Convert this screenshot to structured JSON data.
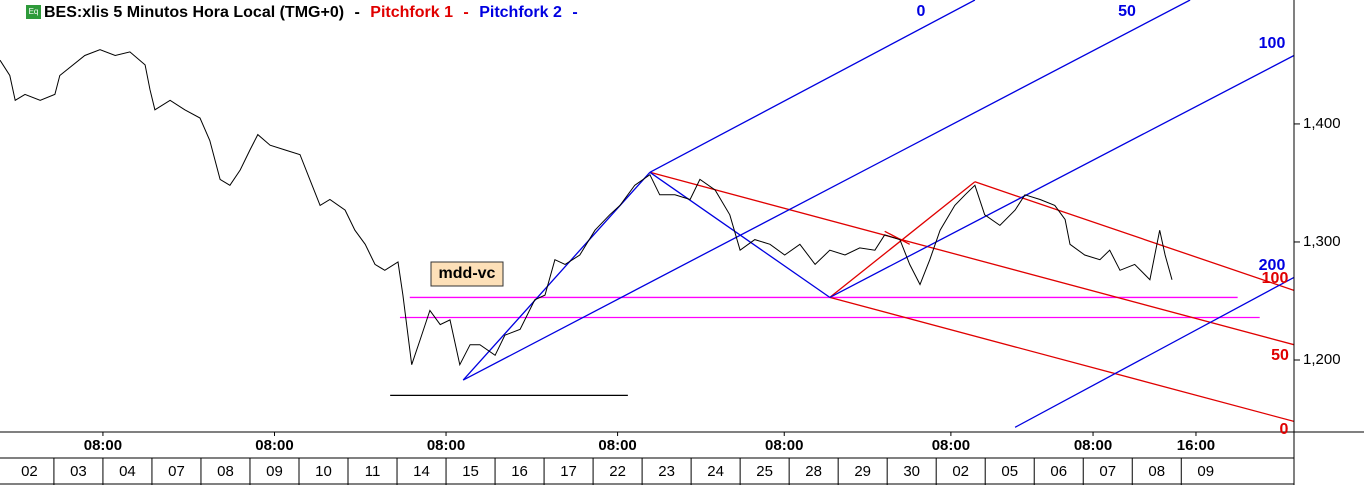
{
  "chart_data": {
    "type": "line",
    "title": "BES:xlis 5 Minutos Hora Local (TMG+0)",
    "symbol_icon": "Eq",
    "separator": "-",
    "xlim": [
      -0.1,
      26.3
    ],
    "ylim": [
      1139,
      1505
    ],
    "yticks": [
      {
        "value": 1200,
        "label": "1,200"
      },
      {
        "value": 1300,
        "label": "1,300"
      },
      {
        "value": 1400,
        "label": "1,400"
      }
    ],
    "xticks": [
      {
        "value": 2.0,
        "label": "08:00"
      },
      {
        "value": 5.5,
        "label": "08:00"
      },
      {
        "value": 9.0,
        "label": "08:00"
      },
      {
        "value": 12.5,
        "label": "08:00"
      },
      {
        "value": 15.9,
        "label": "08:00"
      },
      {
        "value": 19.3,
        "label": "08:00"
      },
      {
        "value": 22.2,
        "label": "08:00"
      },
      {
        "value": 24.3,
        "label": "16:00"
      }
    ],
    "xticks2": [
      {
        "value": 0.5,
        "label": "02"
      },
      {
        "value": 1.5,
        "label": "03"
      },
      {
        "value": 2.5,
        "label": "04"
      },
      {
        "value": 3.5,
        "label": "07"
      },
      {
        "value": 4.5,
        "label": "08"
      },
      {
        "value": 5.5,
        "label": "09"
      },
      {
        "value": 6.5,
        "label": "10"
      },
      {
        "value": 7.5,
        "label": "11"
      },
      {
        "value": 8.5,
        "label": "14"
      },
      {
        "value": 9.5,
        "label": "15"
      },
      {
        "value": 10.5,
        "label": "16"
      },
      {
        "value": 11.5,
        "label": "17"
      },
      {
        "value": 12.5,
        "label": "22"
      },
      {
        "value": 13.5,
        "label": "23"
      },
      {
        "value": 14.5,
        "label": "24"
      },
      {
        "value": 15.5,
        "label": "25"
      },
      {
        "value": 16.5,
        "label": "28"
      },
      {
        "value": 17.5,
        "label": "29"
      },
      {
        "value": 18.5,
        "label": "30"
      },
      {
        "value": 19.5,
        "label": "02"
      },
      {
        "value": 20.5,
        "label": "05"
      },
      {
        "value": 21.5,
        "label": "06"
      },
      {
        "value": 22.5,
        "label": "07"
      },
      {
        "value": 23.5,
        "label": "08"
      },
      {
        "value": 24.5,
        "label": "09"
      }
    ],
    "series": [
      {
        "color": "#000000",
        "x": [
          -0.1,
          0.1,
          0.21,
          0.41,
          0.72,
          1.02,
          1.12,
          1.63,
          1.94,
          2.25,
          2.55,
          2.86,
          2.96,
          3.06,
          3.37,
          3.67,
          3.98,
          4.18,
          4.39,
          4.59,
          4.8,
          5.0,
          5.16,
          5.41,
          5.71,
          6.02,
          6.22,
          6.43,
          6.63,
          6.94,
          7.14,
          7.35,
          7.55,
          7.75,
          8.02,
          8.12,
          8.3,
          8.47,
          8.67,
          8.88,
          9.08,
          9.28,
          9.49,
          9.69,
          10.0,
          10.2,
          10.51,
          10.81,
          11.02,
          11.22,
          11.43,
          11.73,
          12.04,
          12.34,
          12.55,
          12.85,
          13.16,
          13.36,
          13.67,
          13.98,
          14.18,
          14.49,
          14.79,
          15.0,
          15.3,
          15.61,
          15.91,
          16.22,
          16.53,
          16.83,
          17.14,
          17.44,
          17.75,
          17.95,
          18.26,
          18.46,
          18.67,
          18.87,
          19.08,
          19.38,
          19.59,
          19.79,
          19.99,
          20.3,
          20.61,
          20.81,
          21.12,
          21.42,
          21.63,
          21.73,
          22.03,
          22.34,
          22.54,
          22.75,
          23.05,
          23.36,
          23.56,
          23.67,
          23.81
        ],
        "values": [
          1454,
          1441,
          1420,
          1425,
          1420,
          1425,
          1441,
          1458,
          1463,
          1458,
          1461,
          1450,
          1429,
          1412,
          1420,
          1412,
          1405,
          1386,
          1353,
          1348,
          1361,
          1378,
          1391,
          1382,
          1378,
          1374,
          1353,
          1331,
          1336,
          1327,
          1310,
          1298,
          1281,
          1276,
          1283,
          1255,
          1196,
          1217,
          1242,
          1230,
          1234,
          1196,
          1213,
          1213,
          1204,
          1221,
          1226,
          1251,
          1255,
          1285,
          1281,
          1289,
          1310,
          1323,
          1331,
          1348,
          1357,
          1340,
          1340,
          1336,
          1353,
          1344,
          1323,
          1293,
          1302,
          1298,
          1289,
          1298,
          1281,
          1293,
          1289,
          1295,
          1293,
          1306,
          1302,
          1281,
          1264,
          1285,
          1310,
          1331,
          1340,
          1348,
          1323,
          1314,
          1327,
          1340,
          1336,
          1331,
          1319,
          1298,
          1289,
          1285,
          1293,
          1276,
          1281,
          1268,
          1310,
          1289,
          1268
        ]
      }
    ],
    "pitchforks": [
      {
        "name": "Pitchfork 1",
        "color": "#e00000",
        "levels": [
          100,
          50,
          0
        ],
        "lines": [
          {
            "x": [
              13.16,
              26.3
            ],
            "y": [
              1359,
              1213
            ]
          },
          {
            "x": [
              19.79,
              26.3
            ],
            "y": [
              1351,
              1259
            ]
          },
          {
            "x": [
              16.83,
              26.3
            ],
            "y": [
              1253,
              1148
            ]
          },
          {
            "x": [
              16.83,
              19.79
            ],
            "y": [
              1253,
              1351
            ]
          },
          {
            "x": [
              17.95,
              18.46
            ],
            "y": [
              1309,
              1298
            ]
          }
        ]
      },
      {
        "name": "Pitchfork 2",
        "color": "#0000e0",
        "levels": [
          0,
          50,
          100,
          200
        ],
        "lines": [
          {
            "x": [
              13.16,
              19.79
            ],
            "y": [
              1359,
              1505
            ]
          },
          {
            "x": [
              13.16,
              16.83
            ],
            "y": [
              1359,
              1253
            ]
          },
          {
            "x": [
              9.35,
              24.18
            ],
            "y": [
              1183,
              1505
            ]
          },
          {
            "x": [
              16.83,
              26.3
            ],
            "y": [
              1253,
              1458
            ]
          },
          {
            "x": [
              20.61,
              26.3
            ],
            "y": [
              1143,
              1270
            ]
          },
          {
            "x": [
              9.35,
              13.16
            ],
            "y": [
              1183,
              1359
            ]
          }
        ]
      }
    ],
    "hlines": [
      {
        "y": 1253,
        "x": [
          8.26,
          25.15
        ],
        "color": "#ff00ff"
      },
      {
        "y": 1236,
        "x": [
          8.06,
          25.6
        ],
        "color": "#ff00ff"
      },
      {
        "y": 1170,
        "x": [
          7.86,
          12.71
        ],
        "color": "#000000"
      }
    ],
    "annotation": "mdd-vc"
  }
}
